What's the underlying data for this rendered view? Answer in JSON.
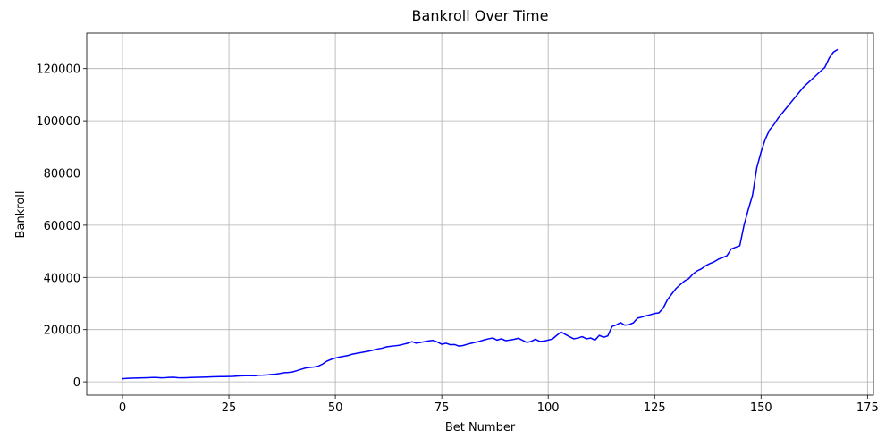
{
  "chart_data": {
    "type": "line",
    "title": "Bankroll Over Time",
    "x_label": "Bet Number",
    "y_label": "Bankroll",
    "color": "#0000ff",
    "grid": true,
    "xlim": [
      -8.4,
      176.4
    ],
    "xticks": [
      0,
      25,
      50,
      75,
      100,
      125,
      150,
      175
    ],
    "ylim": [
      -5100,
      133600
    ],
    "yticks": [
      0,
      20000,
      40000,
      60000,
      80000,
      100000,
      120000
    ],
    "x": [
      0,
      1,
      2,
      3,
      4,
      5,
      6,
      7,
      8,
      9,
      10,
      11,
      12,
      13,
      14,
      15,
      16,
      17,
      18,
      19,
      20,
      21,
      22,
      23,
      24,
      25,
      26,
      27,
      28,
      29,
      30,
      31,
      32,
      33,
      34,
      35,
      36,
      37,
      38,
      39,
      40,
      41,
      42,
      43,
      44,
      45,
      46,
      47,
      48,
      49,
      50,
      51,
      52,
      53,
      54,
      55,
      56,
      57,
      58,
      59,
      60,
      61,
      62,
      63,
      64,
      65,
      66,
      67,
      68,
      69,
      70,
      71,
      72,
      73,
      74,
      75,
      76,
      77,
      78,
      79,
      80,
      81,
      82,
      83,
      84,
      85,
      86,
      87,
      88,
      89,
      90,
      91,
      92,
      93,
      94,
      95,
      96,
      97,
      98,
      99,
      100,
      101,
      102,
      103,
      104,
      105,
      106,
      107,
      108,
      109,
      110,
      111,
      112,
      113,
      114,
      115,
      116,
      117,
      118,
      119,
      120,
      121,
      122,
      123,
      124,
      125,
      126,
      127,
      128,
      129,
      130,
      131,
      132,
      133,
      134,
      135,
      136,
      137,
      138,
      139,
      140,
      141,
      142,
      143,
      144,
      145,
      146,
      147,
      148,
      149,
      150,
      151,
      152,
      153,
      154,
      155,
      156,
      157,
      158,
      159,
      160,
      161,
      162,
      163,
      164,
      165,
      166,
      167,
      168
    ],
    "values": [
      1200,
      1300,
      1400,
      1450,
      1500,
      1550,
      1600,
      1650,
      1650,
      1550,
      1600,
      1700,
      1750,
      1600,
      1550,
      1600,
      1650,
      1700,
      1750,
      1800,
      1850,
      1900,
      1950,
      2000,
      2000,
      2050,
      2100,
      2200,
      2300,
      2350,
      2400,
      2300,
      2500,
      2550,
      2650,
      2800,
      2950,
      3200,
      3500,
      3600,
      3800,
      4300,
      4800,
      5300,
      5500,
      5700,
      6000,
      6800,
      7900,
      8600,
      9100,
      9500,
      9800,
      10100,
      10600,
      10900,
      11200,
      11500,
      11800,
      12200,
      12600,
      12900,
      13400,
      13600,
      13800,
      14000,
      14400,
      14800,
      15400,
      14800,
      15100,
      15400,
      15700,
      15900,
      15200,
      14400,
      14800,
      14200,
      14300,
      13700,
      13900,
      14400,
      14800,
      15200,
      15600,
      16100,
      16500,
      16800,
      16000,
      16500,
      15800,
      16000,
      16300,
      16700,
      15900,
      15100,
      15500,
      16300,
      15500,
      15600,
      16000,
      16400,
      17800,
      19100,
      18200,
      17300,
      16500,
      16800,
      17300,
      16500,
      16800,
      16000,
      17800,
      17100,
      17600,
      21200,
      21800,
      22700,
      21700,
      21900,
      22600,
      24400,
      24800,
      25300,
      25700,
      26200,
      26400,
      28200,
      31400,
      33600,
      35700,
      37200,
      38600,
      39500,
      41300,
      42500,
      43300,
      44500,
      45300,
      46000,
      47000,
      47600,
      48300,
      50900,
      51500,
      52100,
      60000,
      66000,
      71500,
      82000,
      88000,
      93000,
      96500,
      98500,
      101000,
      103000,
      105000,
      107000,
      109000,
      111000,
      113000,
      114500,
      116000,
      117500,
      119000,
      120500,
      124000,
      126300,
      127300
    ]
  }
}
